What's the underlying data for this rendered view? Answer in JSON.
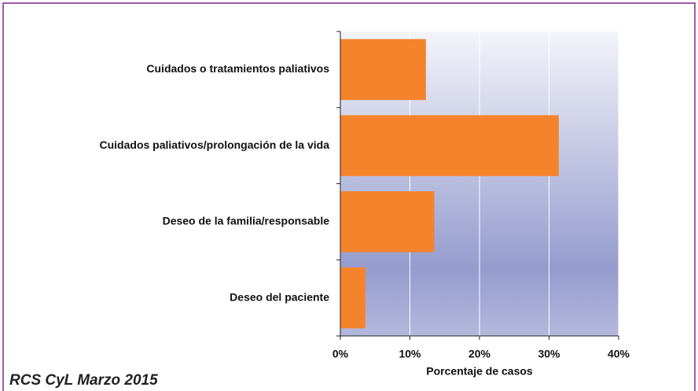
{
  "chart_data": {
    "type": "bar",
    "orientation": "horizontal",
    "categories": [
      "Cuidados o tratamientos paliativos",
      "Cuidados paliativos/prolongación de la vida",
      "Deseo de la familia/responsable",
      "Deseo del paciente"
    ],
    "values": [
      12.3,
      31.4,
      13.5,
      3.6
    ],
    "color": "#f5832b",
    "xlim": [
      0,
      40
    ],
    "xticks": [
      {
        "value": 0,
        "label": "0%"
      },
      {
        "value": 10,
        "label": "10%"
      },
      {
        "value": 20,
        "label": "20%"
      },
      {
        "value": 30,
        "label": "30%"
      },
      {
        "value": 40,
        "label": "40%"
      }
    ],
    "x_label": "Porcentaje de casos",
    "grid": true,
    "source": "RCS CyL Marzo 2015"
  }
}
